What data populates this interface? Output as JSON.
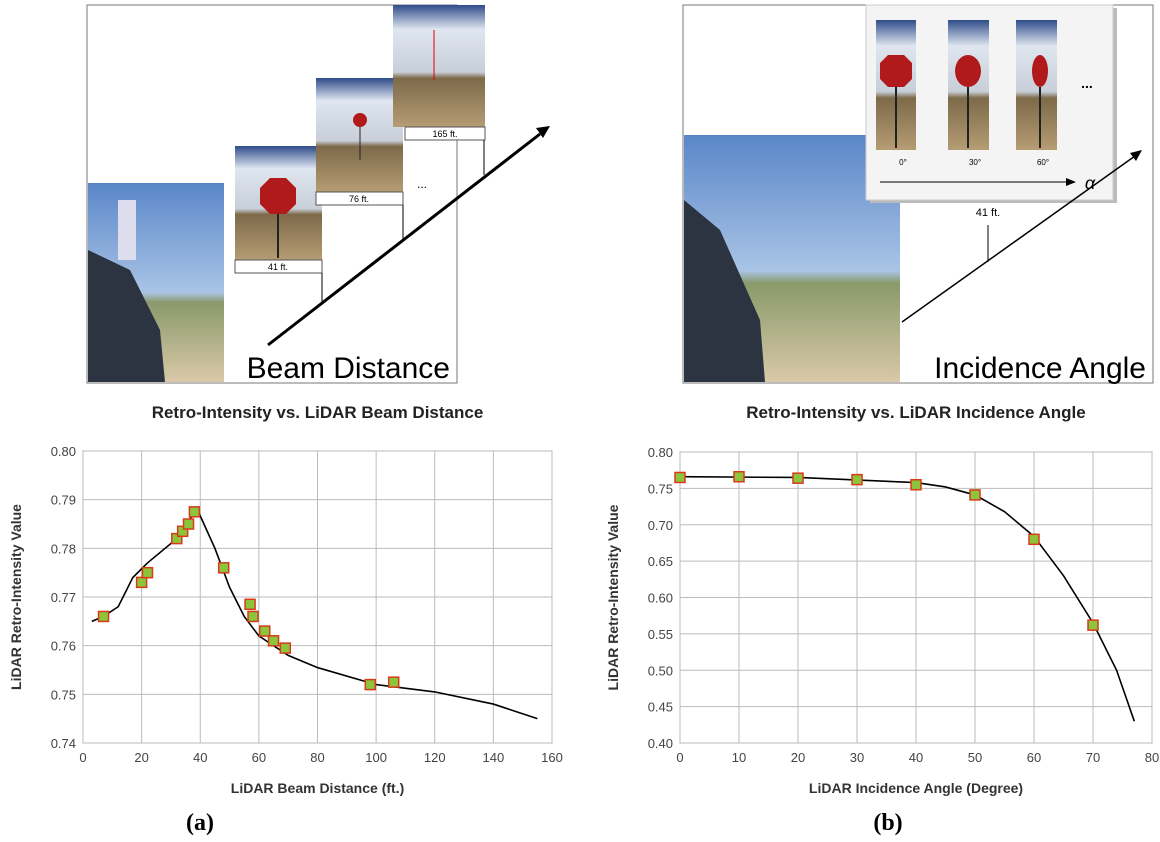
{
  "photos": [
    {
      "label": "Beam Distance",
      "distances": [
        "41 ft.",
        "76 ft.",
        "165 ft."
      ],
      "ellipsis": "..."
    },
    {
      "label": "Incidence Angle",
      "angles": [
        "0°",
        "30°",
        "60°"
      ],
      "ellipsis": "...",
      "symbol": "α",
      "distance": "41 ft."
    }
  ],
  "captions": [
    "(a)",
    "(b)"
  ],
  "chart_data": [
    {
      "type": "scatter",
      "title": "Retro-Intensity vs. LiDAR Beam Distance",
      "xlabel": "LiDAR Beam Distance (ft.)",
      "ylabel": "LiDAR Retro-Intensity Value",
      "xlim": [
        0,
        160
      ],
      "xticks": [
        0,
        20,
        40,
        60,
        80,
        100,
        120,
        140,
        160
      ],
      "ylim": [
        0.74,
        0.8
      ],
      "yticks": [
        0.74,
        0.75,
        0.76,
        0.77,
        0.78,
        0.79,
        {
          "value": 0.8,
          "label": "0.80"
        }
      ],
      "grid": true,
      "series": [
        {
          "style": "line",
          "color": "#000000",
          "x": [
            3,
            7,
            12,
            17,
            22,
            30,
            39,
            45,
            50,
            55,
            60,
            70,
            80,
            100,
            120,
            140,
            155
          ],
          "values": [
            0.765,
            0.766,
            0.768,
            0.774,
            0.777,
            0.781,
            0.788,
            0.78,
            0.772,
            0.766,
            0.762,
            0.758,
            0.7555,
            0.752,
            0.7505,
            0.748,
            0.745
          ]
        },
        {
          "style": "markers",
          "color": "#8cc43c",
          "edgecolor": "#d83a1a",
          "x": [
            7,
            20,
            22,
            32,
            34,
            36,
            38,
            48,
            57,
            58,
            62,
            65,
            69,
            98,
            106
          ],
          "values": [
            0.766,
            0.773,
            0.775,
            0.782,
            0.7835,
            0.785,
            0.7875,
            0.776,
            0.7685,
            0.766,
            0.763,
            0.761,
            0.7595,
            0.752,
            0.7525
          ]
        }
      ]
    },
    {
      "type": "scatter",
      "title": "Retro-Intensity vs. LiDAR Incidence Angle",
      "xlabel": "LiDAR Incidence Angle (Degree)",
      "ylabel": "LiDAR Retro-Intensity Value",
      "xlim": [
        0,
        80
      ],
      "xticks": [
        0,
        10,
        20,
        30,
        40,
        50,
        60,
        70,
        80
      ],
      "ylim": [
        0.4,
        0.8
      ],
      "yticks": [
        {
          "value": 0.4,
          "label": "0.40"
        },
        0.45,
        {
          "value": 0.5,
          "label": "0.50"
        },
        0.55,
        {
          "value": 0.6,
          "label": "0.60"
        },
        0.65,
        {
          "value": 0.7,
          "label": "0.70"
        },
        0.75,
        {
          "value": 0.8,
          "label": "0.80"
        }
      ],
      "grid": true,
      "series": [
        {
          "style": "line",
          "color": "#000000",
          "x": [
            0,
            20,
            40,
            45,
            50,
            55,
            60,
            65,
            70,
            74,
            77
          ],
          "values": [
            0.766,
            0.765,
            0.758,
            0.752,
            0.741,
            0.718,
            0.684,
            0.63,
            0.565,
            0.5,
            0.43
          ]
        },
        {
          "style": "markers",
          "color": "#8cc43c",
          "edgecolor": "#d83a1a",
          "x": [
            0,
            10,
            20,
            30,
            40,
            50,
            60,
            70
          ],
          "values": [
            0.765,
            0.766,
            0.764,
            0.762,
            0.755,
            0.741,
            0.68,
            0.562
          ]
        }
      ]
    }
  ]
}
